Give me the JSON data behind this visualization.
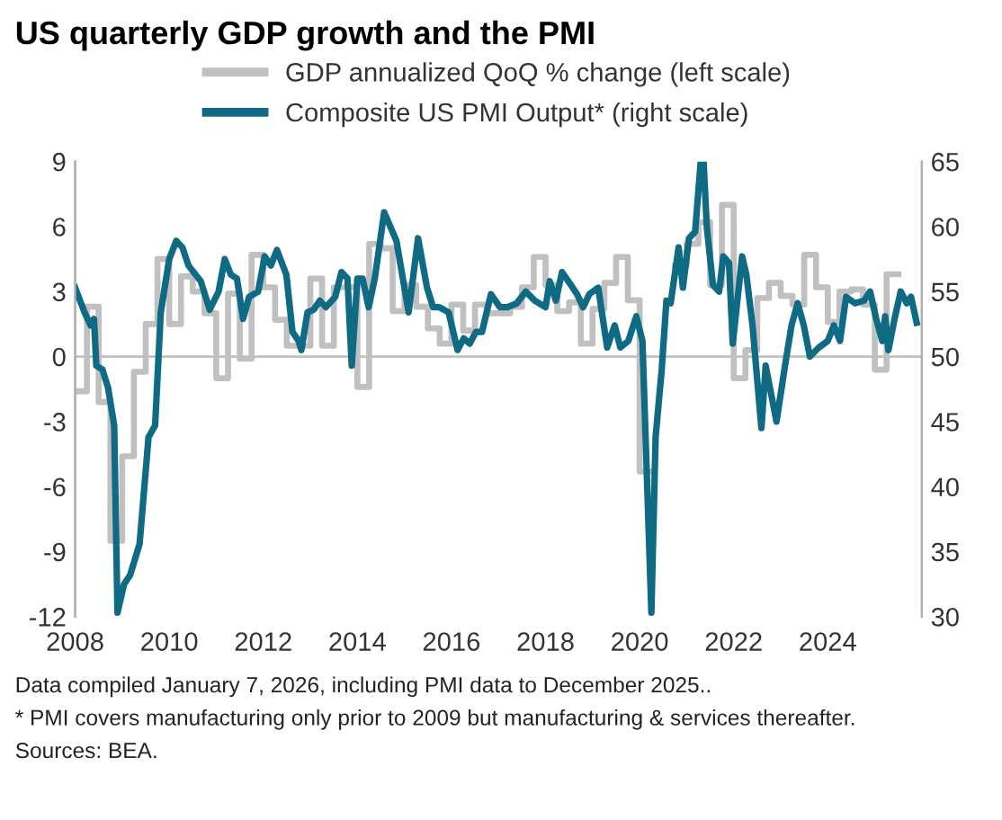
{
  "chart_data": {
    "type": "line",
    "title": "US quarterly GDP growth and the PMI",
    "xlim": [
      2008,
      2026
    ],
    "xticks": [
      2008,
      2010,
      2012,
      2014,
      2016,
      2018,
      2020,
      2022,
      2024
    ],
    "ylim": [
      -12,
      9
    ],
    "yticks": [
      -12,
      -9,
      -6,
      -3,
      0,
      3,
      6,
      9
    ],
    "y2lim": [
      30,
      65
    ],
    "y2ticks": [
      30,
      35,
      40,
      45,
      50,
      55,
      60,
      65
    ],
    "grid": false,
    "legend": "top",
    "ref_lines": [
      {
        "axis": "y",
        "value": 0,
        "color": "#c0c0c0"
      }
    ],
    "series": [
      {
        "name": "GDP annualized QoQ % change (left scale)",
        "type": "step",
        "color": "#c0c0c0",
        "x": [
          2008.0,
          2008.25,
          2008.5,
          2008.75,
          2009.0,
          2009.25,
          2009.5,
          2009.75,
          2010.0,
          2010.25,
          2010.5,
          2010.75,
          2011.0,
          2011.25,
          2011.5,
          2011.75,
          2012.0,
          2012.25,
          2012.5,
          2012.75,
          2013.0,
          2013.25,
          2013.5,
          2013.75,
          2014.0,
          2014.25,
          2014.5,
          2014.75,
          2015.0,
          2015.25,
          2015.5,
          2015.75,
          2016.0,
          2016.25,
          2016.5,
          2016.75,
          2017.0,
          2017.25,
          2017.5,
          2017.75,
          2018.0,
          2018.25,
          2018.5,
          2018.75,
          2019.0,
          2019.25,
          2019.5,
          2019.75,
          2020.0,
          2020.25,
          2020.5,
          2020.75,
          2021.0,
          2021.25,
          2021.5,
          2021.75,
          2022.0,
          2022.25,
          2022.5,
          2022.75,
          2023.0,
          2023.25,
          2023.5,
          2023.75,
          2024.0,
          2024.25,
          2024.5,
          2024.75,
          2025.0,
          2025.25,
          2025.5
        ],
        "values": [
          -1.6,
          2.3,
          -2.1,
          -8.5,
          -4.6,
          -0.7,
          1.5,
          4.5,
          1.5,
          3.7,
          3.0,
          2.0,
          -1.0,
          2.9,
          -0.1,
          4.7,
          3.2,
          1.7,
          0.5,
          0.5,
          3.6,
          0.5,
          3.2,
          3.2,
          -1.4,
          5.2,
          5.0,
          2.1,
          3.3,
          2.3,
          1.3,
          0.6,
          2.4,
          1.2,
          2.4,
          2.0,
          2.0,
          2.3,
          3.2,
          4.6,
          3.3,
          2.1,
          2.5,
          0.6,
          2.2,
          3.4,
          4.6,
          2.6,
          -5.3,
          null,
          null,
          4.2,
          5.2,
          6.2,
          3.3,
          7.0,
          -1.0,
          0.3,
          2.7,
          3.4,
          2.8,
          2.4,
          4.7,
          3.2,
          1.6,
          3.0,
          3.1,
          2.4,
          -0.6,
          3.8,
          3.8
        ]
      },
      {
        "name": "Composite US PMI Output* (right scale)",
        "axis": "y2",
        "color": "#0f6a84",
        "x": [
          2008.0,
          2008.2,
          2008.33,
          2008.4,
          2008.45,
          2008.58,
          2008.7,
          2008.83,
          2008.9,
          2009.04,
          2009.17,
          2009.37,
          2009.56,
          2009.7,
          2009.82,
          2010.0,
          2010.15,
          2010.28,
          2010.41,
          2010.67,
          2010.86,
          2011.05,
          2011.18,
          2011.31,
          2011.44,
          2011.57,
          2011.7,
          2011.89,
          2012.03,
          2012.16,
          2012.29,
          2012.49,
          2012.62,
          2012.75,
          2012.81,
          2012.94,
          2013.07,
          2013.2,
          2013.33,
          2013.53,
          2013.66,
          2013.79,
          2013.88,
          2014.0,
          2014.11,
          2014.24,
          2014.37,
          2014.57,
          2014.83,
          2015.09,
          2015.29,
          2015.48,
          2015.61,
          2015.74,
          2015.94,
          2016.13,
          2016.26,
          2016.39,
          2016.52,
          2016.65,
          2016.84,
          2017.03,
          2017.19,
          2017.39,
          2017.58,
          2017.77,
          2018.0,
          2018.09,
          2018.22,
          2018.35,
          2018.54,
          2018.67,
          2018.8,
          2018.93,
          2019.12,
          2019.31,
          2019.47,
          2019.59,
          2019.76,
          2019.93,
          2020.06,
          2020.25,
          2020.34,
          2020.47,
          2020.57,
          2020.66,
          2020.83,
          2020.92,
          2021.05,
          2021.18,
          2021.3,
          2021.36,
          2021.43,
          2021.56,
          2021.69,
          2021.78,
          2021.9,
          2021.98,
          2022.18,
          2022.27,
          2022.4,
          2022.59,
          2022.68,
          2022.91,
          2023.1,
          2023.23,
          2023.36,
          2023.49,
          2023.62,
          2023.81,
          2024.0,
          2024.13,
          2024.26,
          2024.39,
          2024.58,
          2024.77,
          2024.9,
          2025.03,
          2025.16,
          2025.22,
          2025.29,
          2025.42,
          2025.55,
          2025.68,
          2025.77,
          2025.89
        ],
        "values": [
          55.3,
          53.4,
          52.4,
          52.9,
          49.3,
          49.0,
          47.6,
          44.7,
          30.3,
          32.5,
          33.2,
          35.6,
          43.8,
          44.7,
          53.4,
          57.5,
          58.9,
          58.4,
          57.0,
          55.8,
          53.6,
          55.0,
          57.5,
          56.3,
          56.0,
          52.9,
          54.6,
          55.0,
          57.7,
          57.0,
          58.2,
          56.3,
          51.9,
          51.2,
          50.5,
          53.4,
          53.6,
          54.3,
          53.8,
          54.6,
          56.5,
          56.0,
          49.3,
          56.0,
          56.0,
          53.8,
          56.0,
          61.1,
          58.9,
          53.4,
          59.1,
          55.3,
          53.8,
          53.8,
          53.4,
          50.5,
          51.4,
          51.0,
          51.9,
          51.9,
          54.8,
          53.8,
          53.8,
          54.1,
          55.0,
          54.3,
          53.8,
          55.8,
          54.3,
          56.5,
          55.5,
          54.8,
          53.8,
          54.8,
          55.3,
          50.7,
          52.4,
          50.7,
          51.2,
          53.1,
          51.2,
          30.3,
          43.8,
          49.0,
          54.3,
          54.1,
          58.4,
          55.3,
          59.1,
          59.6,
          65.0,
          65.0,
          59.9,
          55.5,
          55.0,
          57.7,
          57.2,
          51.0,
          57.7,
          56.3,
          52.4,
          44.5,
          49.3,
          45.0,
          49.5,
          52.4,
          54.1,
          52.4,
          50.0,
          50.7,
          51.2,
          52.4,
          51.2,
          54.6,
          54.1,
          54.3,
          55.0,
          52.9,
          51.2,
          53.1,
          50.5,
          52.9,
          55.0,
          54.1,
          54.6,
          52.6
        ]
      }
    ],
    "annotations": [
      "Data compiled January 7, 2026, including PMI data to December 2025..",
      "* PMI covers manufacturing only prior to 2009 but manufacturing & services thereafter.",
      "Sources: BEA."
    ]
  }
}
